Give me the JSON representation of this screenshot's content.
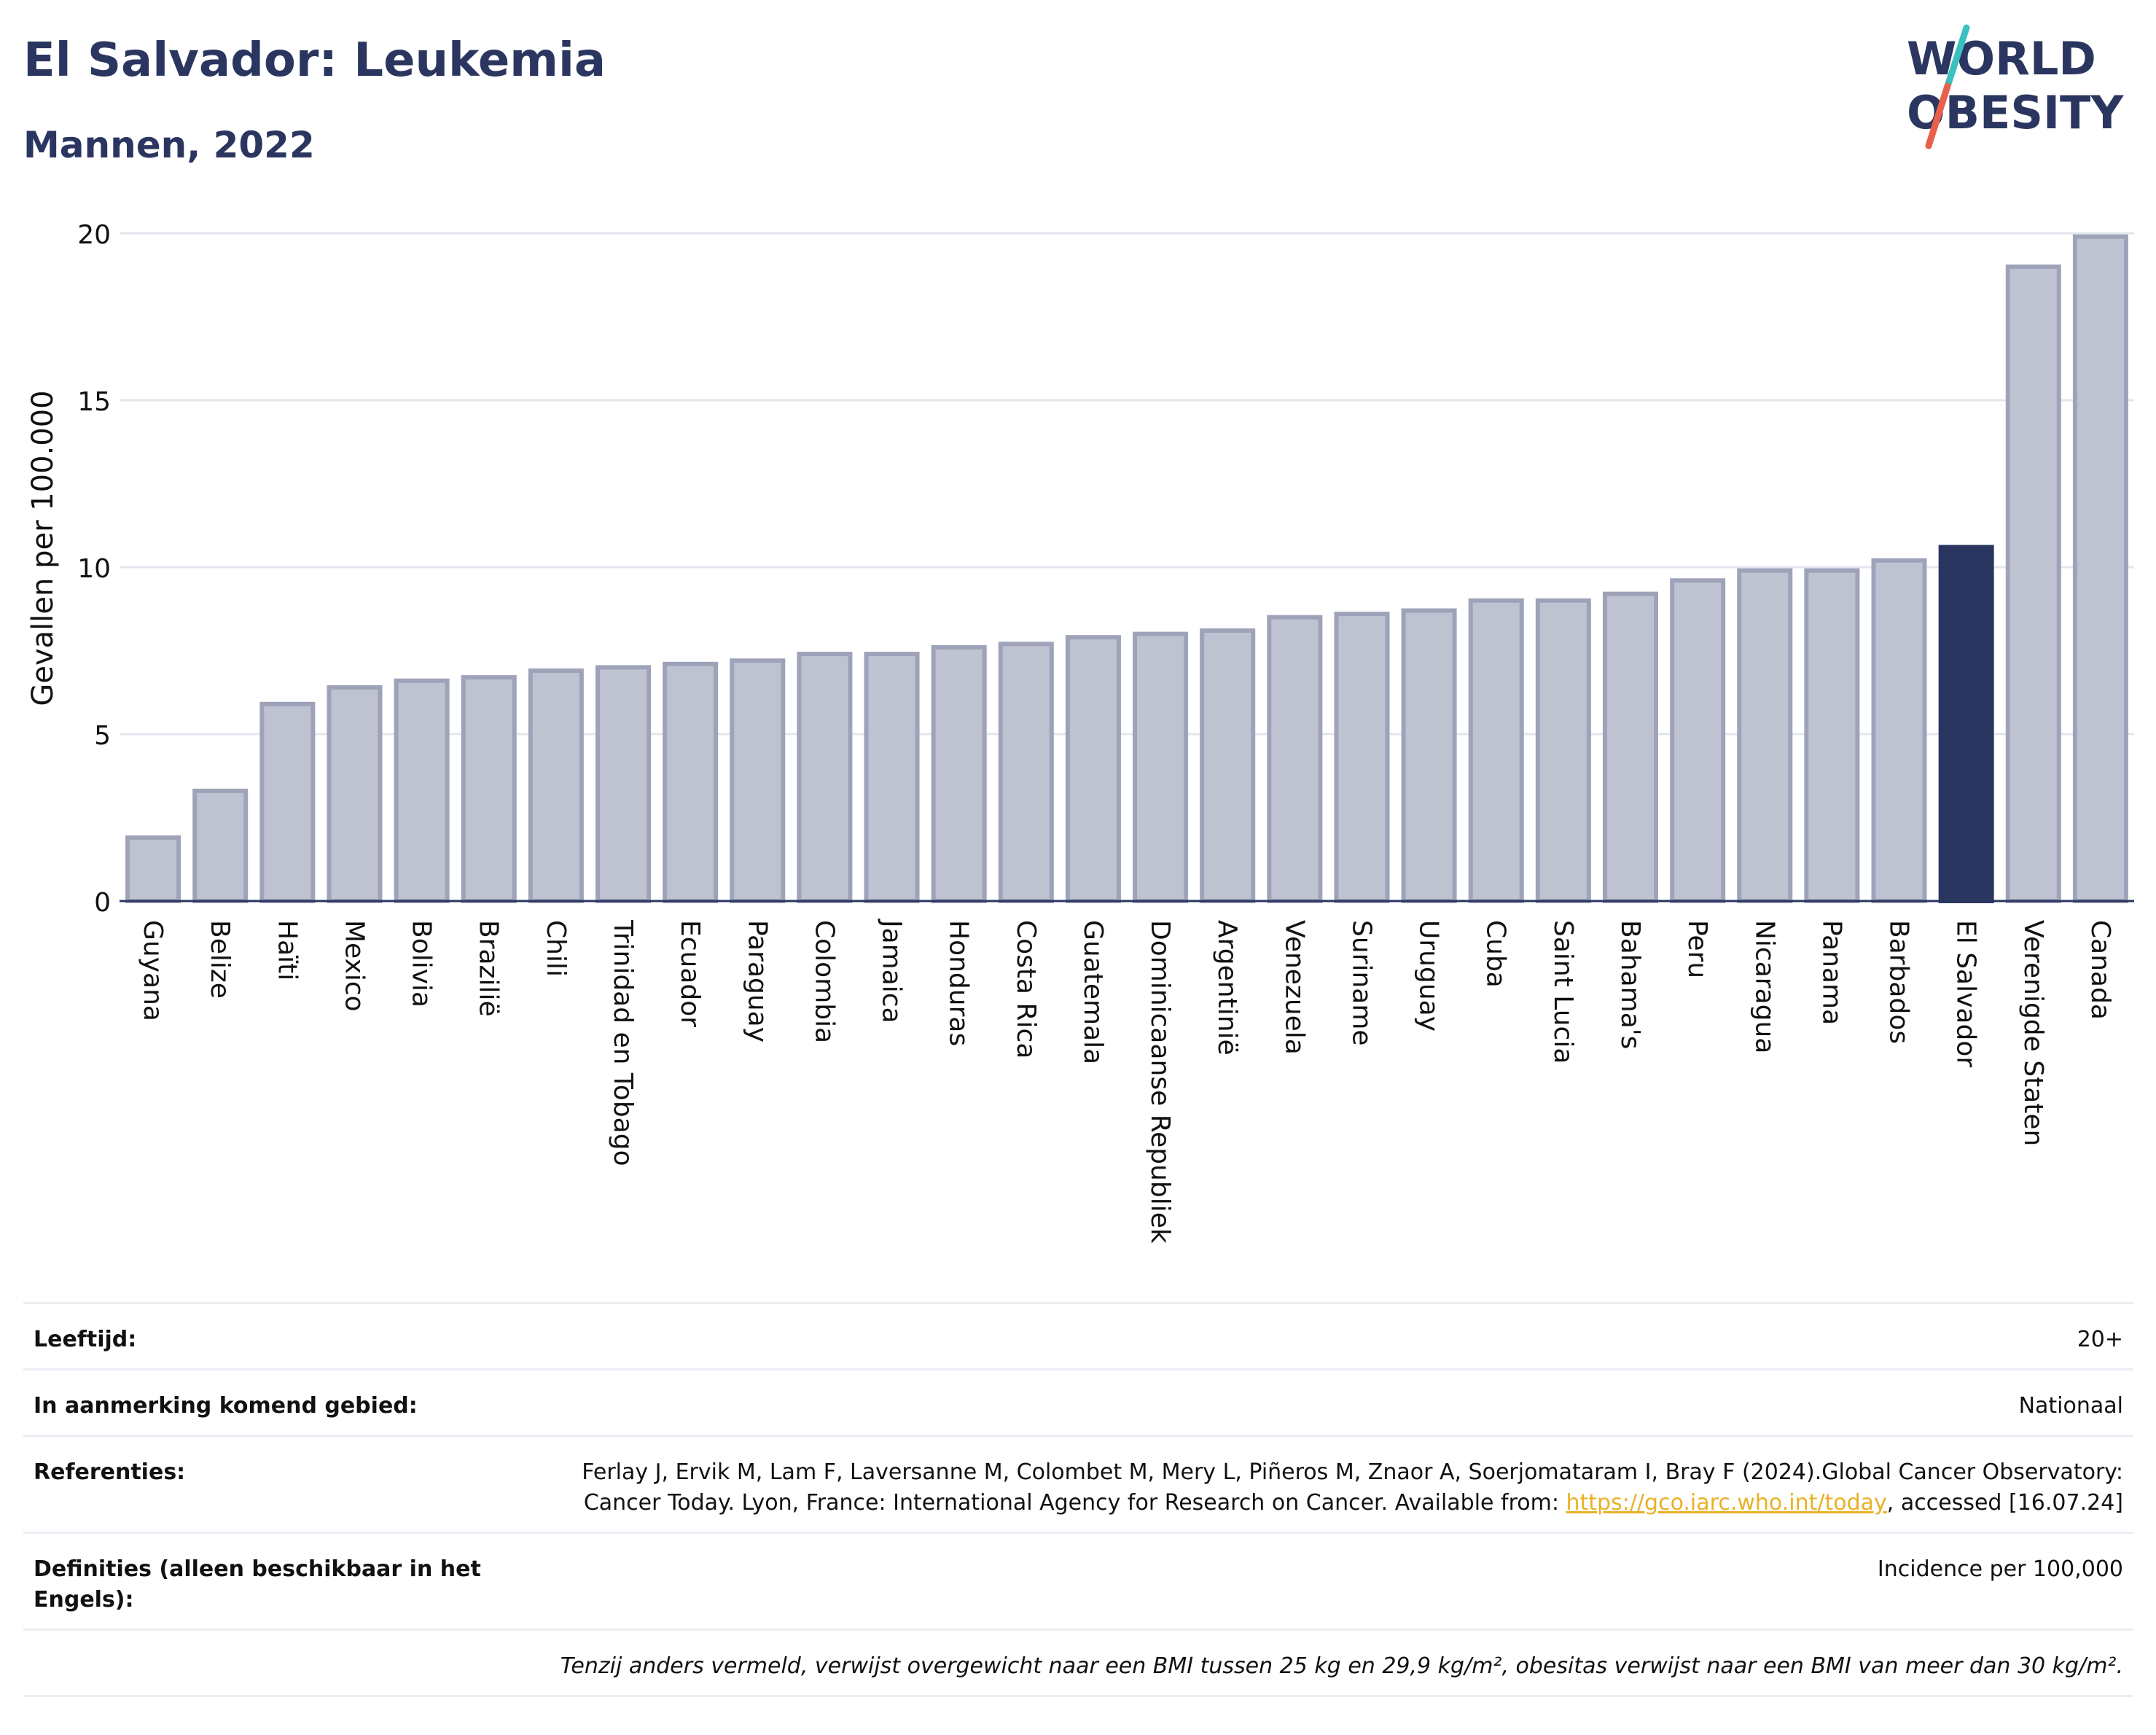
{
  "header": {
    "title": "El Salvador: Leukemia",
    "subtitle": "Mannen, 2022"
  },
  "logo": {
    "line1": "WORLD",
    "line2": "OBESITY",
    "slash_color_top": "#3bbfbf",
    "slash_color_bottom": "#e8604c",
    "text_color": "#2b3660"
  },
  "chart_data": {
    "type": "bar",
    "title": "El Salvador: Leukemia",
    "subtitle": "Mannen, 2022",
    "xlabel": "",
    "ylabel": "Gevallen per 100.000",
    "ylim": [
      0,
      20
    ],
    "yticks": [
      0,
      5,
      10,
      15,
      20
    ],
    "grid": true,
    "highlight": "El Salvador",
    "colors": {
      "default": "#bfc3d1",
      "default_border": "#9ea3b9",
      "highlight": "#2b3660",
      "axis": "#2b3660",
      "grid": "#e4e6ee"
    },
    "categories": [
      "Guyana",
      "Belize",
      "Haïti",
      "Mexico",
      "Bolivia",
      "Brazilië",
      "Chili",
      "Trinidad en Tobago",
      "Ecuador",
      "Paraguay",
      "Colombia",
      "Jamaica",
      "Honduras",
      "Costa Rica",
      "Guatemala",
      "Dominicaanse Republiek",
      "Argentinië",
      "Venezuela",
      "Suriname",
      "Uruguay",
      "Cuba",
      "Saint Lucia",
      "Bahama's",
      "Peru",
      "Nicaragua",
      "Panama",
      "Barbados",
      "El Salvador",
      "Verenigde Staten",
      "Canada"
    ],
    "values": [
      1.9,
      3.3,
      5.9,
      6.4,
      6.6,
      6.7,
      6.9,
      7.0,
      7.1,
      7.2,
      7.4,
      7.4,
      7.6,
      7.7,
      7.9,
      8.0,
      8.1,
      8.5,
      8.6,
      8.7,
      9.0,
      9.0,
      9.2,
      9.6,
      9.9,
      9.9,
      10.2,
      10.6,
      19.0,
      19.9
    ]
  },
  "details": {
    "age_label": "Leeftijd:",
    "age_value": "20+",
    "area_label": "In aanmerking komend gebied:",
    "area_value": "Nationaal",
    "ref_label": "Referenties:",
    "ref_text_1": "Ferlay J, Ervik M, Lam F, Laversanne M, Colombet M, Mery L, Piñeros M, Znaor A, Soerjomataram I, Bray F (2024).Global Cancer Observatory: Cancer Today. Lyon, France: International Agency for Research on Cancer. Available from: ",
    "ref_link": "https://gco.iarc.who.int/today",
    "ref_text_2": ", accessed [16.07.24]",
    "def_label": "Definities (alleen beschikbaar in het Engels):",
    "def_value": "Incidence per 100,000",
    "note": "Tenzij anders vermeld, verwijst overgewicht naar een BMI tussen 25 kg en 29,9 kg/m², obesitas verwijst naar een BMI van meer dan 30 kg/m²."
  }
}
